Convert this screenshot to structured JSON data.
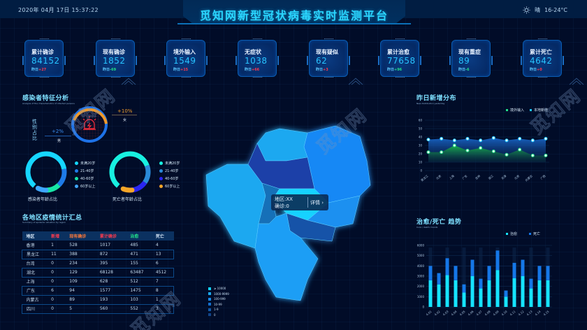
{
  "header": {
    "datetime": "2020年 04月 17日   15:37:22",
    "title": "觅知网新型冠状病毒实时监测平台",
    "weather": {
      "icon": "sun-icon",
      "condition": "晴",
      "temperature": "16-24°C"
    }
  },
  "stats": [
    {
      "label": "累计确诊",
      "value": "84152",
      "delta_label": "昨日",
      "delta": "+27",
      "trend": "up"
    },
    {
      "label": "现有确诊",
      "value": "1852",
      "delta_label": "昨日",
      "delta": "-69",
      "trend": "down"
    },
    {
      "label": "境外输入",
      "value": "1549",
      "delta_label": "昨日",
      "delta": "+15",
      "trend": "up"
    },
    {
      "label": "无症状",
      "value": "1038",
      "delta_label": "昨日",
      "delta": "+66",
      "trend": "up"
    },
    {
      "label": "现有疑似",
      "value": "62",
      "delta_label": "昨日",
      "delta": "+3",
      "trend": "up"
    },
    {
      "label": "累计治愈",
      "value": "77658",
      "delta_label": "昨日",
      "delta": "+96",
      "trend": "down"
    },
    {
      "label": "现有重症",
      "value": "89",
      "delta_label": "昨日",
      "delta": "-6",
      "trend": "down"
    },
    {
      "label": "累计死亡",
      "value": "4642",
      "delta_label": "昨日",
      "delta": "+0",
      "trend": "up"
    }
  ],
  "features": {
    "title": "感染者特征分析",
    "subtitle": "Analysis of the characteristics of infected persons",
    "gender": {
      "label": "性别占比",
      "male": {
        "label": "男",
        "value": "+2%"
      },
      "female": {
        "label": "女",
        "value": "+10%"
      },
      "icon": "alarm-icon"
    },
    "infected_age": {
      "label": "感染者年龄占比",
      "legend": [
        "未满20岁",
        "21-40岁",
        "40-60岁",
        "60岁以上"
      ],
      "colors": [
        "#16d6ff",
        "#1e7be8",
        "#17e6a6",
        "#3fa7ff"
      ]
    },
    "death_age": {
      "label": "死亡者年龄占比",
      "legend": [
        "未满20岁",
        "21-40岁",
        "40-60岁",
        "60岁以上"
      ],
      "colors": [
        "#18f0e0",
        "#2a8ad8",
        "#2a26f0",
        "#f6a628"
      ]
    }
  },
  "regions_table": {
    "title": "各地区疫情统计汇总",
    "subtitle": "Summary of epidemic situation by region",
    "headers": [
      "地区",
      "新增",
      "现有确诊",
      "累计确诊",
      "治愈",
      "死亡"
    ],
    "header_colors": [
      "#d8e8f8",
      "#ff3b4f",
      "#ff7a3a",
      "#ff3b4f",
      "#21e08a",
      "#d8e8f8"
    ],
    "rows": [
      [
        "香港",
        "1",
        "528",
        "1017",
        "485",
        "4"
      ],
      [
        "黑龙江",
        "11",
        "388",
        "872",
        "471",
        "13"
      ],
      [
        "台湾",
        "0",
        "234",
        "395",
        "155",
        "6"
      ],
      [
        "湖北",
        "0",
        "129",
        "68128",
        "63487",
        "4512"
      ],
      [
        "上海",
        "0",
        "109",
        "628",
        "512",
        "7"
      ],
      [
        "广东",
        "6",
        "94",
        "1577",
        "1475",
        "8"
      ],
      [
        "内蒙古",
        "0",
        "89",
        "193",
        "103",
        "1"
      ],
      [
        "四川",
        "0",
        "5",
        "560",
        "552",
        "3"
      ]
    ]
  },
  "map": {
    "tooltip": {
      "region": "地区:XX",
      "confirmed": "确诊:0",
      "detail": "详情",
      "detail_icon": "chevron-right-icon"
    },
    "legend": [
      {
        "label": "≥ 10000",
        "color": "#14d2ff"
      },
      {
        "label": "1000-9999",
        "color": "#1aa8f0"
      },
      {
        "label": "100-999",
        "color": "#1888e8"
      },
      {
        "label": "10-99",
        "color": "#1470d0"
      },
      {
        "label": "1-9",
        "color": "#125aa8"
      },
      {
        "label": "0",
        "color": "#10448a"
      }
    ]
  },
  "watermark": "觅知网",
  "chart_data": [
    {
      "type": "area",
      "title": "昨日新增分布",
      "subtitle": "New distribution yesterday",
      "categories": [
        "黑龙江",
        "北京",
        "上海",
        "广东",
        "吉林",
        "浙江",
        "天津",
        "北京",
        "内蒙古",
        "广西"
      ],
      "series": [
        {
          "name": "境外输入",
          "color": "#21e08a",
          "values": [
            22,
            22,
            30,
            24,
            27,
            23,
            19,
            25,
            18,
            18
          ]
        },
        {
          "name": "本地新增",
          "color": "#1ec8ff",
          "values": [
            37,
            38,
            36,
            38,
            36,
            39,
            36,
            38,
            36,
            38
          ]
        }
      ],
      "yticks": [
        0,
        10,
        20,
        30,
        40,
        50,
        60
      ],
      "ylim": [
        0,
        60
      ],
      "legend_position": "top-right",
      "grid": true
    },
    {
      "type": "bar",
      "title": "治愈/死亡 趋势",
      "subtitle": "Cure / death, trends",
      "categories": [
        "4.01",
        "4.02",
        "4.03",
        "4.04",
        "4.05",
        "4.06",
        "4.07",
        "4.08",
        "4.09",
        "4.10",
        "4.11",
        "4.12",
        "4.13",
        "4.14",
        "4.15"
      ],
      "series": [
        {
          "name": "治愈",
          "color": "#16e4ff",
          "values": [
            2600,
            2200,
            3100,
            2600,
            1400,
            3000,
            1800,
            2600,
            3600,
            1000,
            2800,
            3000,
            1800,
            2600,
            2600
          ]
        },
        {
          "name": "死亡",
          "color": "#1577e8",
          "values": [
            1400,
            1100,
            1650,
            1400,
            800,
            1600,
            950,
            1400,
            1900,
            600,
            1500,
            1600,
            950,
            1400,
            1400
          ]
        }
      ],
      "stacked": true,
      "yticks": [
        0,
        1000,
        2000,
        3000,
        4000,
        5000,
        6000
      ],
      "ylim": [
        0,
        6000
      ],
      "legend_position": "top-right",
      "grid": true
    }
  ]
}
